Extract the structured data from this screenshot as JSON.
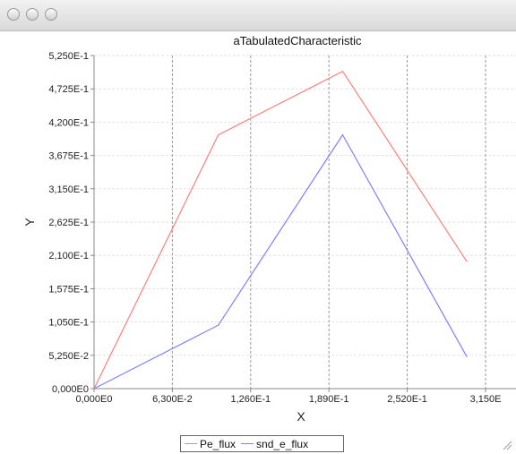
{
  "window": {
    "title": ""
  },
  "chart_data": {
    "type": "line",
    "title": "aTabulatedCharacteristic",
    "xlabel": "X",
    "ylabel": "Y",
    "xlim": [
      0,
      0.315
    ],
    "ylim": [
      0,
      0.525
    ],
    "x_ticks": [
      "0,000E0",
      "6,300E-2",
      "1,260E-1",
      "1,890E-1",
      "2,520E-1",
      "3,150E"
    ],
    "y_ticks": [
      "0,000E0",
      "5,250E-2",
      "1,050E-1",
      "1,575E-1",
      "2,100E-1",
      "2,625E-1",
      "3,150E-1",
      "3,675E-1",
      "4,200E-1",
      "4,725E-1",
      "5,250E-1"
    ],
    "grid": true,
    "legend": "bottom-center",
    "series": [
      {
        "name": "Pe_flux",
        "color": "#ff7f7f",
        "x": [
          0,
          0.1,
          0.2,
          0.3
        ],
        "y": [
          0,
          0.4,
          0.5,
          0.2
        ]
      },
      {
        "name": "snd_e_flux",
        "color": "#7f7fff",
        "x": [
          0,
          0.1,
          0.2,
          0.3
        ],
        "y": [
          0,
          0.1,
          0.4,
          0.05
        ]
      }
    ]
  }
}
